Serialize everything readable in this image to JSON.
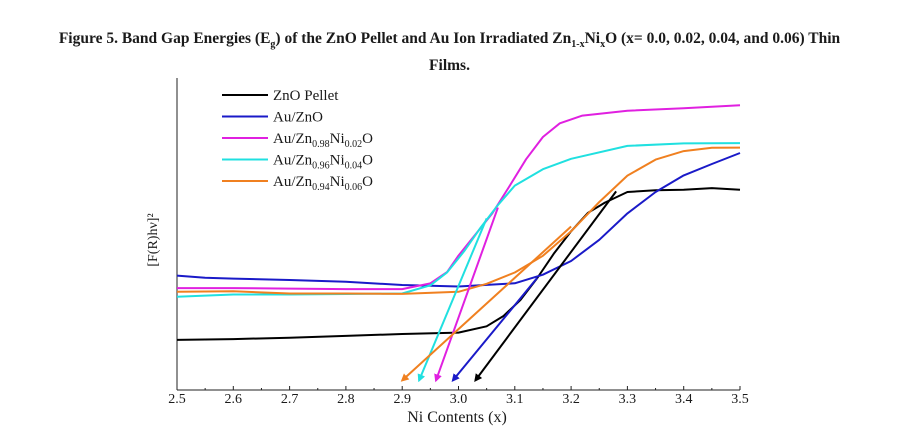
{
  "caption": {
    "prefix": "Figure 5. Band Gap Energies (E",
    "sub_g": "g",
    "mid": ") of the ZnO Pellet and Au Ion Irradiated Zn",
    "sub_1x": "1-x",
    "ni": "Ni",
    "sub_x": "x",
    "suffix": "O (x= 0.0, 0.02, 0.04, and 0.06) Thin",
    "line2": "Films."
  },
  "chart_data": {
    "type": "line",
    "xlabel": "Ni Contents (x)",
    "ylabel": "[F(R)hν]²",
    "xlim": [
      2.5,
      3.5
    ],
    "ylim": [
      0,
      1
    ],
    "x_ticks": [
      "2.5",
      "2.6",
      "2.7",
      "2.8",
      "2.9",
      "3.0",
      "3.1",
      "3.2",
      "3.3",
      "3.4",
      "3.5"
    ],
    "grid": false,
    "legend_position": "top-left",
    "series": [
      {
        "name": "ZnO Pellet",
        "color": "#000000",
        "points": [
          [
            2.5,
            0.13
          ],
          [
            2.6,
            0.135
          ],
          [
            2.7,
            0.14
          ],
          [
            2.8,
            0.145
          ],
          [
            2.9,
            0.15
          ],
          [
            3.0,
            0.155
          ],
          [
            3.05,
            0.18
          ],
          [
            3.08,
            0.22
          ],
          [
            3.11,
            0.28
          ],
          [
            3.14,
            0.36
          ],
          [
            3.17,
            0.45
          ],
          [
            3.2,
            0.53
          ],
          [
            3.23,
            0.6
          ],
          [
            3.26,
            0.64
          ],
          [
            3.3,
            0.68
          ],
          [
            3.35,
            0.685
          ],
          [
            3.4,
            0.685
          ],
          [
            3.45,
            0.69
          ],
          [
            3.5,
            0.685
          ]
        ]
      },
      {
        "name": "Au/ZnO",
        "color": "#1a1ac8",
        "points": [
          [
            2.5,
            0.37
          ],
          [
            2.55,
            0.36
          ],
          [
            2.6,
            0.355
          ],
          [
            2.7,
            0.35
          ],
          [
            2.8,
            0.345
          ],
          [
            2.9,
            0.335
          ],
          [
            3.0,
            0.33
          ],
          [
            3.1,
            0.34
          ],
          [
            3.15,
            0.37
          ],
          [
            3.2,
            0.42
          ],
          [
            3.25,
            0.5
          ],
          [
            3.3,
            0.6
          ],
          [
            3.35,
            0.68
          ],
          [
            3.4,
            0.74
          ],
          [
            3.45,
            0.78
          ],
          [
            3.5,
            0.82
          ]
        ]
      },
      {
        "name": "Au/Zn0.98Ni0.02O",
        "label_base": "Au/Zn",
        "label_sub1": "0.98",
        "label_ni": "Ni",
        "label_sub2": "0.02",
        "label_end": "O",
        "color": "#e020e0",
        "points": [
          [
            2.5,
            0.32
          ],
          [
            2.6,
            0.32
          ],
          [
            2.7,
            0.32
          ],
          [
            2.8,
            0.32
          ],
          [
            2.9,
            0.32
          ],
          [
            2.95,
            0.34
          ],
          [
            2.98,
            0.38
          ],
          [
            3.0,
            0.44
          ],
          [
            3.03,
            0.52
          ],
          [
            3.06,
            0.6
          ],
          [
            3.09,
            0.7
          ],
          [
            3.12,
            0.8
          ],
          [
            3.15,
            0.88
          ],
          [
            3.18,
            0.93
          ],
          [
            3.22,
            0.96
          ],
          [
            3.3,
            0.98
          ],
          [
            3.4,
            0.99
          ],
          [
            3.5,
            1.0
          ]
        ]
      },
      {
        "name": "Au/Zn0.96Ni0.04O",
        "label_base": "Au/Zn",
        "label_sub1": "0.96",
        "label_ni": "Ni",
        "label_sub2": "0.04",
        "label_end": "O",
        "color": "#20e0e0",
        "points": [
          [
            2.5,
            0.29
          ],
          [
            2.6,
            0.3
          ],
          [
            2.7,
            0.3
          ],
          [
            2.8,
            0.3
          ],
          [
            2.9,
            0.3
          ],
          [
            2.95,
            0.33
          ],
          [
            2.98,
            0.38
          ],
          [
            3.01,
            0.46
          ],
          [
            3.04,
            0.55
          ],
          [
            3.07,
            0.63
          ],
          [
            3.1,
            0.7
          ],
          [
            3.15,
            0.76
          ],
          [
            3.2,
            0.8
          ],
          [
            3.3,
            0.85
          ],
          [
            3.4,
            0.86
          ],
          [
            3.5,
            0.86
          ]
        ]
      },
      {
        "name": "Au/Zn0.94Ni0.06O",
        "label_base": "Au/Zn",
        "label_sub1": "0.94",
        "label_ni": "Ni",
        "label_sub2": "0.06",
        "label_end": "O",
        "color": "#f08020",
        "points": [
          [
            2.5,
            0.31
          ],
          [
            2.6,
            0.31
          ],
          [
            2.7,
            0.3
          ],
          [
            2.8,
            0.3
          ],
          [
            2.9,
            0.3
          ],
          [
            3.0,
            0.31
          ],
          [
            3.05,
            0.34
          ],
          [
            3.1,
            0.38
          ],
          [
            3.15,
            0.44
          ],
          [
            3.2,
            0.53
          ],
          [
            3.25,
            0.64
          ],
          [
            3.3,
            0.74
          ],
          [
            3.35,
            0.8
          ],
          [
            3.4,
            0.83
          ],
          [
            3.45,
            0.84
          ],
          [
            3.5,
            0.84
          ]
        ]
      }
    ],
    "tangent_arrows": [
      {
        "color": "#000000",
        "from": [
          3.28,
          0.68
        ],
        "to": [
          3.03,
          -0.02
        ]
      },
      {
        "color": "#1a1ac8",
        "from": [
          3.14,
          0.36
        ],
        "to": [
          2.99,
          -0.02
        ]
      },
      {
        "color": "#e020e0",
        "from": [
          3.07,
          0.62
        ],
        "to": [
          2.96,
          -0.02
        ]
      },
      {
        "color": "#20e0e0",
        "from": [
          3.05,
          0.58
        ],
        "to": [
          2.93,
          -0.02
        ]
      },
      {
        "color": "#f08020",
        "from": [
          3.2,
          0.55
        ],
        "to": [
          2.9,
          -0.02
        ]
      }
    ]
  }
}
